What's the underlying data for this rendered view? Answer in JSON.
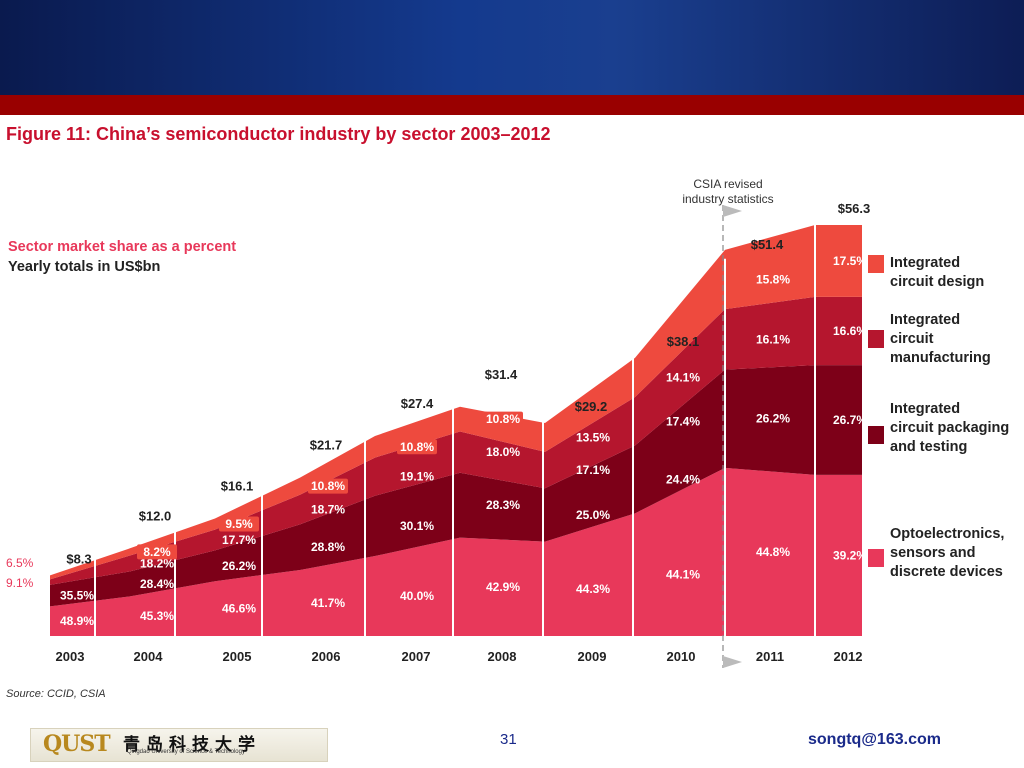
{
  "chart_data": {
    "type": "area",
    "title": "Figure 11: China’s semiconductor industry by sector 2003–2012",
    "subtitle_line1": "Sector market share as a percent",
    "subtitle_line2": "Yearly totals in US$bn",
    "categories": [
      "2003",
      "2004",
      "2005",
      "2006",
      "2007",
      "2008",
      "2009",
      "2010",
      "2011",
      "2012"
    ],
    "totals": [
      8.3,
      12.0,
      16.1,
      21.7,
      27.4,
      31.4,
      29.2,
      38.1,
      51.4,
      56.3
    ],
    "total_labels": [
      "$8.3",
      "$12.0",
      "$16.1",
      "$21.7",
      "$27.4",
      "$31.4",
      "$29.2",
      "$38.1",
      "$51.4",
      "$56.3"
    ],
    "ylim": [
      0,
      56.3
    ],
    "series": [
      {
        "name": "Optoelectronics, sensors and discrete devices",
        "values": [
          48.9,
          45.3,
          46.6,
          41.7,
          40.0,
          42.9,
          44.3,
          44.1,
          44.8,
          39.2
        ],
        "labels": [
          "48.9%",
          "45.3%",
          "46.6%",
          "41.7%",
          "40.0%",
          "42.9%",
          "44.3%",
          "44.1%",
          "44.8%",
          "39.2%"
        ],
        "color": "#e8385a"
      },
      {
        "name": "Integrated circuit packaging and testing",
        "values": [
          35.5,
          28.4,
          26.2,
          28.8,
          30.1,
          28.3,
          25.0,
          24.4,
          26.2,
          26.7
        ],
        "labels": [
          "35.5%",
          "28.4%",
          "26.2%",
          "28.8%",
          "30.1%",
          "28.3%",
          "25.0%",
          "24.4%",
          "26.2%",
          "26.7%"
        ],
        "color": "#7d0018"
      },
      {
        "name": "Integrated circuit manufacturing",
        "values": [
          9.1,
          18.2,
          17.7,
          18.7,
          19.1,
          18.0,
          17.1,
          17.4,
          16.1,
          16.6
        ],
        "labels": [
          "9.1%",
          "18.2%",
          "17.7%",
          "18.7%",
          "19.1%",
          "18.0%",
          "17.1%",
          "17.4%",
          "16.1%",
          "16.6%"
        ],
        "color": "#b5162e"
      },
      {
        "name": "Integrated circuit design",
        "values": [
          6.5,
          8.2,
          9.5,
          10.8,
          10.8,
          10.8,
          13.5,
          14.1,
          15.8,
          17.5
        ],
        "labels": [
          "6.5%",
          "8.2%",
          "9.5%",
          "10.8%",
          "10.8%",
          "10.8%",
          "13.5%",
          "14.1%",
          "15.8%",
          "17.5%"
        ],
        "color": "#ee4a3e"
      }
    ],
    "legend": [
      {
        "key": "design",
        "line1": "Integrated",
        "line2": "circuit design",
        "line3": ""
      },
      {
        "key": "manufacturing",
        "line1": "Integrated",
        "line2": "circuit",
        "line3": "manufacturing"
      },
      {
        "key": "packaging",
        "line1": "Integrated",
        "line2": "circuit packaging",
        "line3": "and testing"
      },
      {
        "key": "opto",
        "line1": "Optoelectronics,",
        "line2": "sensors and",
        "line3": "discrete devices"
      }
    ],
    "annotation_line1": "CSIA revised",
    "annotation_line2": "industry statistics",
    "source": "Source: CCID, CSIA"
  },
  "footer": {
    "logo_mark": "QUST",
    "logo_name": "青岛科技大学",
    "logo_sub": "Qingdao University of Science & Technology",
    "page_number": "31",
    "email": "songtq@163.com"
  },
  "colors": {
    "banner": "#143a8e",
    "strip": "#990000",
    "title": "#c8102e"
  }
}
